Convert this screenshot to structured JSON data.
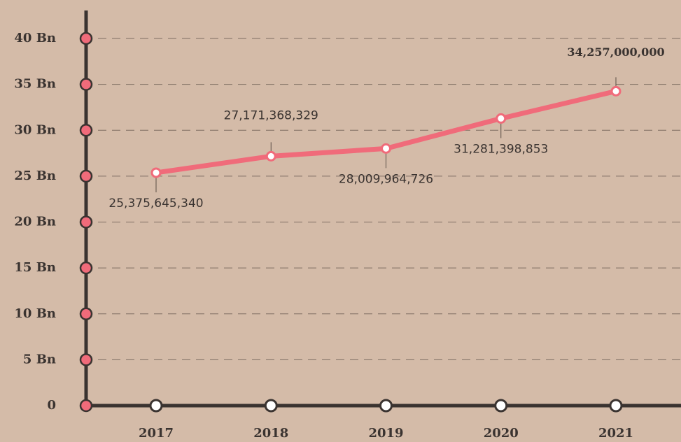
{
  "chart_data": {
    "type": "line",
    "categories": [
      "2017",
      "2018",
      "2019",
      "2020",
      "2021"
    ],
    "series": [
      {
        "name": "Value",
        "color": "#f06b7a",
        "values": [
          25375645340,
          27171368329,
          28009964726,
          31281398853,
          34257000000
        ],
        "value_labels": [
          "25,375,645,340",
          "27,171,368,329",
          "28,009,964,726",
          "31,281,398,853",
          "34,257,000,000"
        ]
      }
    ],
    "ylim": [
      0,
      40000000000
    ],
    "yticks": [
      {
        "value": 0,
        "label": "0"
      },
      {
        "value": 5000000000,
        "label": "5 Bn"
      },
      {
        "value": 10000000000,
        "label": "10 Bn"
      },
      {
        "value": 15000000000,
        "label": "15 Bn"
      },
      {
        "value": 20000000000,
        "label": "20 Bn"
      },
      {
        "value": 25000000000,
        "label": "25 Bn"
      },
      {
        "value": 30000000000,
        "label": "30 Bn"
      },
      {
        "value": 35000000000,
        "label": "35 Bn"
      },
      {
        "value": 40000000000,
        "label": "40 Bn"
      }
    ],
    "grid": true
  }
}
